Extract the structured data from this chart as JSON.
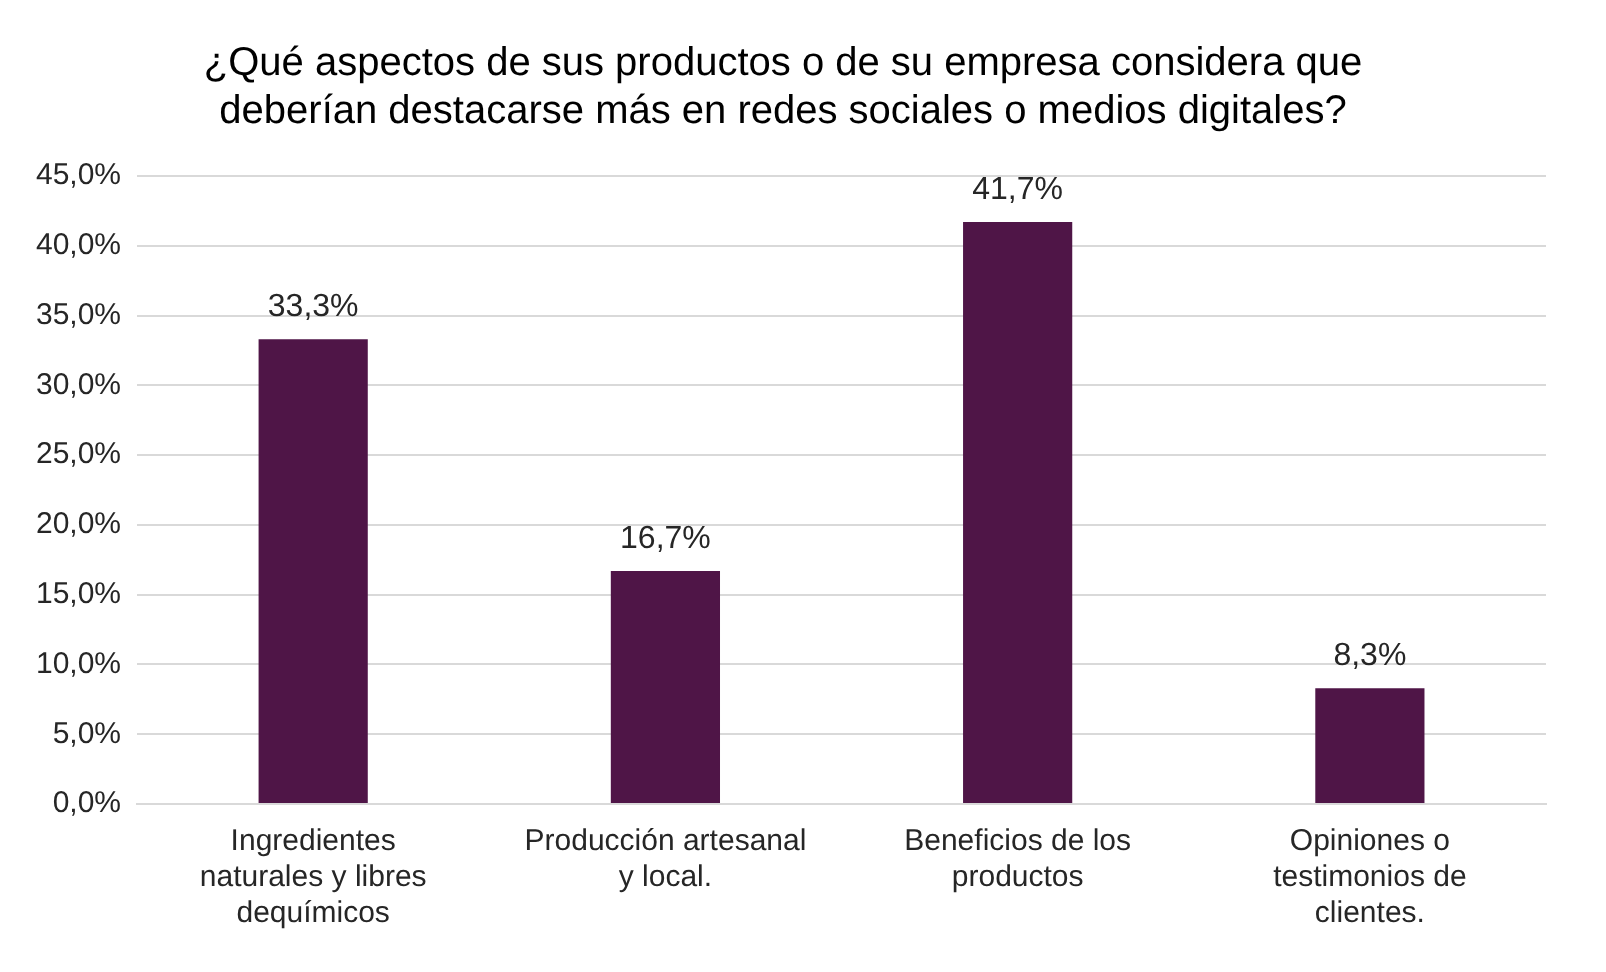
{
  "chart_data": {
    "type": "bar",
    "title": "¿Qué aspectos de sus productos o de su empresa considera que deberían destacarse más en redes sociales o medios digitales?",
    "categories": [
      "Ingredientes naturales y libres dequímicos",
      "Producción artesanal y local.",
      "Beneficios de los productos",
      "Opiniones o testimonios de clientes."
    ],
    "values": [
      33.3,
      16.7,
      41.7,
      8.3
    ],
    "value_labels": [
      "33,3%",
      "16,7%",
      "41,7%",
      "8,3%"
    ],
    "color": "#4f1547",
    "ylim": [
      0,
      45
    ],
    "yticks": [
      {
        "value": 0,
        "label": "0,0%"
      },
      {
        "value": 5,
        "label": "5,0%"
      },
      {
        "value": 10,
        "label": "10,0%"
      },
      {
        "value": 15,
        "label": "15,0%"
      },
      {
        "value": 20,
        "label": "20,0%"
      },
      {
        "value": 25,
        "label": "25,0%"
      },
      {
        "value": 30,
        "label": "30,0%"
      },
      {
        "value": 35,
        "label": "35,0%"
      },
      {
        "value": 40,
        "label": "40,0%"
      },
      {
        "value": 45,
        "label": "45,0%"
      }
    ],
    "grid": "y"
  }
}
